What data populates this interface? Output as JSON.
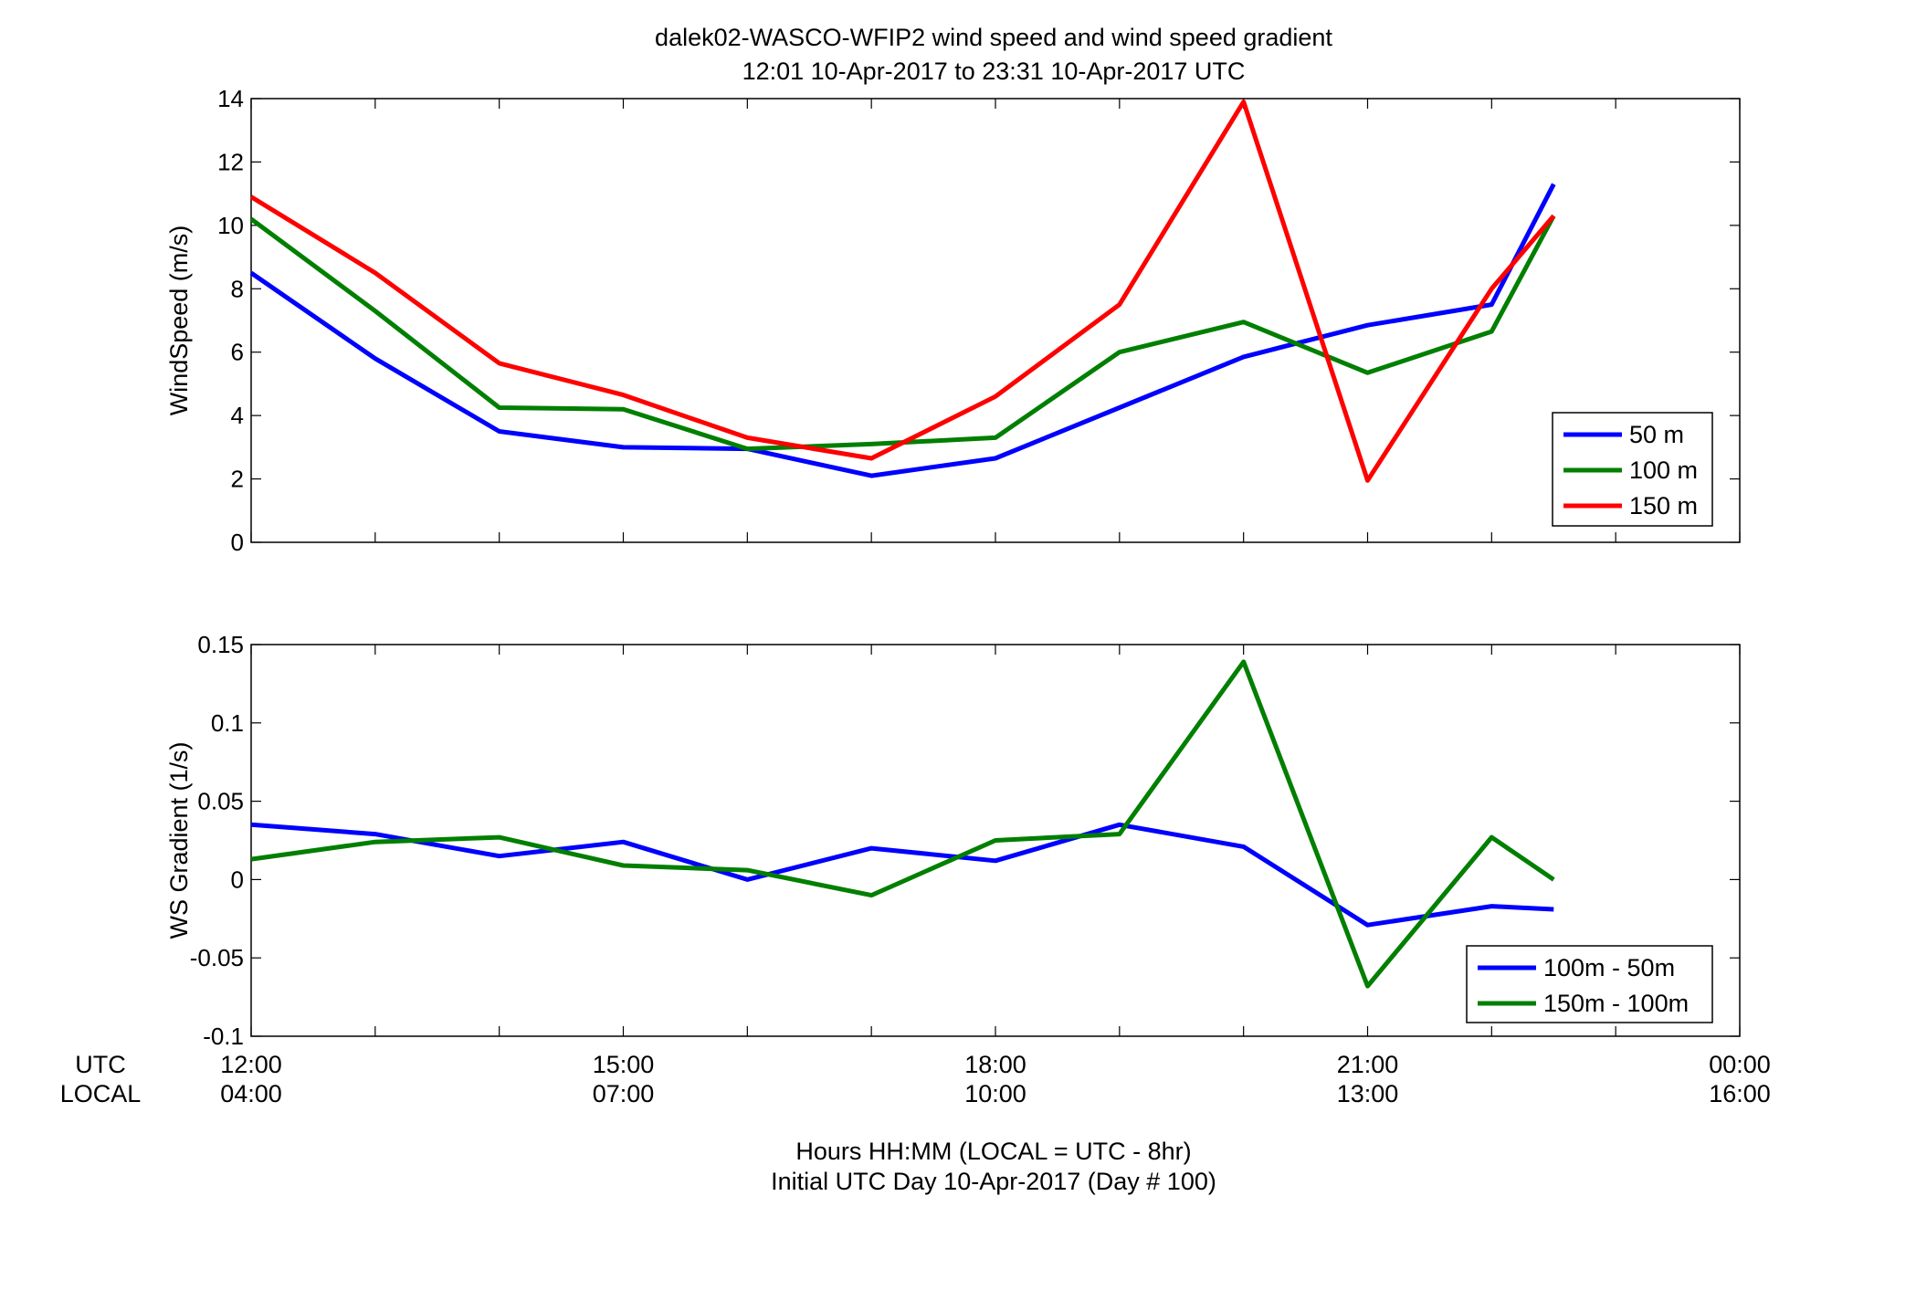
{
  "figure": {
    "title_line1": "dalek02-WASCO-WFIP2  wind speed and wind speed gradient",
    "title_line2": "12:01 10-Apr-2017 to 23:31 10-Apr-2017  UTC",
    "utc_row_label": "UTC",
    "local_row_label": "LOCAL",
    "xlabel_line1": "Hours HH:MM  (LOCAL = UTC - 8hr)",
    "xlabel_line2": "Initial UTC Day 10-Apr-2017 (Day # 100)",
    "utc_ticks": [
      "12:00",
      "15:00",
      "18:00",
      "21:00",
      "00:00"
    ],
    "local_ticks": [
      "04:00",
      "07:00",
      "10:00",
      "13:00",
      "16:00"
    ]
  },
  "chart_data": [
    {
      "type": "line",
      "ylabel": "WindSpeed (m/s)",
      "xlim": [
        12,
        24
      ],
      "ylim": [
        0,
        14
      ],
      "yticks": [
        0,
        2,
        4,
        6,
        8,
        10,
        12,
        14
      ],
      "x_hours_utc": [
        12.0,
        13.0,
        14.0,
        15.0,
        16.0,
        17.0,
        18.0,
        19.0,
        20.0,
        21.0,
        22.0,
        22.5
      ],
      "legend_position": "bottom-right",
      "series": [
        {
          "name": "50 m",
          "color": "#0000ff",
          "values": [
            8.5,
            5.8,
            3.5,
            3.0,
            2.95,
            2.1,
            2.65,
            4.25,
            5.85,
            6.85,
            7.5,
            11.3
          ]
        },
        {
          "name": "100 m",
          "color": "#007f00",
          "values": [
            10.2,
            7.3,
            4.25,
            4.2,
            2.95,
            3.1,
            3.3,
            6.0,
            6.95,
            5.35,
            6.65,
            10.3
          ]
        },
        {
          "name": "150 m",
          "color": "#ff0000",
          "values": [
            10.9,
            8.5,
            5.65,
            4.65,
            3.3,
            2.65,
            4.6,
            7.5,
            13.9,
            1.95,
            8.0,
            10.3
          ]
        }
      ]
    },
    {
      "type": "line",
      "ylabel": "WS Gradient (1/s)",
      "xlim": [
        12,
        24
      ],
      "ylim": [
        -0.1,
        0.15
      ],
      "yticks": [
        -0.1,
        -0.05,
        0,
        0.05,
        0.1,
        0.15
      ],
      "ytick_labels": [
        "-0.1",
        "-0.05",
        "0",
        "0.05",
        "0.1",
        "0.15"
      ],
      "x_hours_utc": [
        12.0,
        13.0,
        14.0,
        15.0,
        16.0,
        17.0,
        18.0,
        19.0,
        20.0,
        21.0,
        22.0,
        22.5
      ],
      "legend_position": "bottom-right",
      "series": [
        {
          "name": "100m - 50m",
          "color": "#0000ff",
          "values": [
            0.035,
            0.029,
            0.015,
            0.024,
            0.0,
            0.02,
            0.012,
            0.035,
            0.021,
            -0.029,
            -0.017,
            -0.019
          ]
        },
        {
          "name": "150m - 100m",
          "color": "#007f00",
          "values": [
            0.013,
            0.024,
            0.027,
            0.009,
            0.006,
            -0.01,
            0.025,
            0.029,
            0.139,
            -0.068,
            0.027,
            0.0
          ]
        }
      ]
    }
  ]
}
